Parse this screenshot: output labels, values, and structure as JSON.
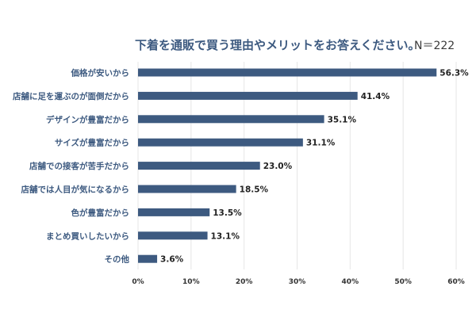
{
  "chart_data": {
    "type": "bar",
    "orientation": "horizontal",
    "title": "下着を通販で買う理由やメリットをお答えください。",
    "sample_size_label": "N＝222",
    "categories": [
      "価格が安いから",
      "店舗に足を運ぶのが面倒だから",
      "デザインが豊富だから",
      "サイズが豊富だから",
      "店舗での接客が苦手だから",
      "店舗では人目が気になるから",
      "色が豊富だから",
      "まとめ買いしたいから",
      "その他"
    ],
    "values": [
      56.3,
      41.4,
      35.1,
      31.1,
      23.0,
      18.5,
      13.5,
      13.1,
      3.6
    ],
    "value_labels": [
      "56.3%",
      "41.4%",
      "35.1%",
      "31.1%",
      "23.0%",
      "18.5%",
      "13.5%",
      "13.1%",
      "3.6%"
    ],
    "x_ticks": [
      "0%",
      "10%",
      "20%",
      "30%",
      "40%",
      "50%",
      "60%"
    ],
    "xlim": [
      0,
      60
    ],
    "xlabel": "",
    "ylabel": "",
    "grid": true,
    "legend": "none",
    "bar_color": "#3d5a80",
    "grid_color": "#e6e6e6"
  }
}
